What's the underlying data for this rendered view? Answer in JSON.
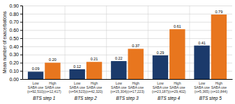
{
  "chart_data": {
    "type": "bar",
    "categories": [
      "BTS step 1",
      "BTS step 2",
      "BTS step 3",
      "BTS step 4",
      "BTS step 5"
    ],
    "series": [
      {
        "color": "#1b3a6b",
        "values": [
          0.09,
          0.12,
          0.22,
          0.29,
          0.41
        ],
        "value_labels": [
          "0.09",
          "0.12",
          "0.22",
          "0.29",
          "0.41"
        ],
        "labels": [
          "Low\nSABA use\n(n=92,510)",
          "Low\nSABA use\n(n=54,523)",
          "Low\nSABA use\n(n=15,304)",
          "Low\nSABA use\n(n=23,187)",
          "Low\nSABA use\n(n=5,365)"
        ]
      },
      {
        "color": "#e8761e",
        "values": [
          0.2,
          0.21,
          0.37,
          0.61,
          0.79
        ],
        "value_labels": [
          "0.20",
          "0.21",
          "0.37",
          "0.61",
          "0.79"
        ],
        "labels": [
          "High\nSABA use\n(n=12,417)",
          "High\nSABA use\n(n=42,320)",
          "High\nSABA use\n(n=17,223)",
          "High\nSABA use\n(n=29,402)",
          "High\nSABA use\n(n=10,844)"
        ]
      }
    ],
    "ylabel": "Mean number of exacerbations",
    "ylim": [
      0.0,
      0.9
    ],
    "yticks": [
      {
        "value": 0.0,
        "label": "0.00"
      },
      {
        "value": 0.1,
        "label": "0.10"
      },
      {
        "value": 0.2,
        "label": "0.20"
      },
      {
        "value": 0.3,
        "label": "0.30"
      },
      {
        "value": 0.4,
        "label": "0.40"
      },
      {
        "value": 0.5,
        "label": "0.50"
      },
      {
        "value": 0.6,
        "label": "0.60"
      },
      {
        "value": 0.7,
        "label": "0.70"
      },
      {
        "value": 0.8,
        "label": "0.80"
      },
      {
        "value": 0.9,
        "label": "0.90"
      }
    ],
    "grid": true,
    "data_labels": true
  }
}
